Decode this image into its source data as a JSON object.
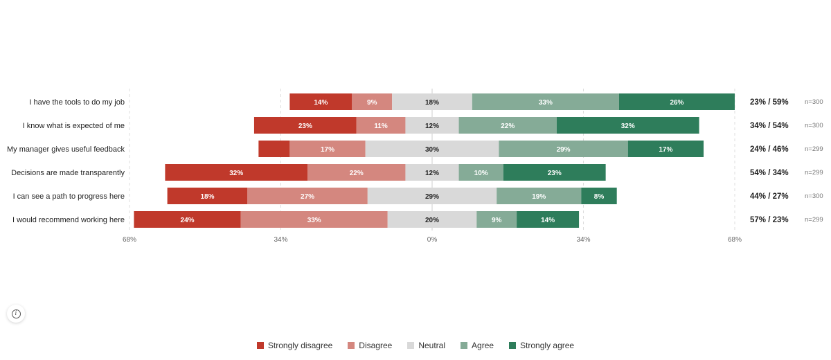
{
  "chart_data": {
    "type": "bar",
    "orientation": "horizontal-diverging",
    "stacked": true,
    "categories": [
      "I have the tools to do my job",
      "I know what is expected of me",
      "My manager gives useful feedback",
      "Decisions are made transparently",
      "I can see a path to progress here",
      "I would recommend working here"
    ],
    "series": [
      {
        "name": "Strongly disagree",
        "color": "#c0392b",
        "values": [
          14,
          23,
          7,
          32,
          18,
          24
        ]
      },
      {
        "name": "Disagree",
        "color": "#d4877f",
        "values": [
          9,
          11,
          17,
          22,
          27,
          33
        ]
      },
      {
        "name": "Neutral",
        "color": "#d9d9d9",
        "values": [
          18,
          12,
          30,
          12,
          29,
          20
        ]
      },
      {
        "name": "Agree",
        "color": "#85ab97",
        "values": [
          33,
          22,
          29,
          10,
          19,
          9
        ]
      },
      {
        "name": "Strongly agree",
        "color": "#2e7d5b",
        "values": [
          26,
          32,
          17,
          23,
          8,
          14
        ]
      }
    ],
    "summaries": [
      "23% / 59%",
      "34% / 54%",
      "24% / 46%",
      "54% / 34%",
      "44% / 27%",
      "57% / 23%"
    ],
    "n_labels": [
      "n=300",
      "n=300",
      "n=299",
      "n=299",
      "n=300",
      "n=299"
    ],
    "xlim": [
      -68,
      68
    ],
    "xticks": [
      -68,
      -34,
      0,
      34,
      68
    ],
    "xtick_labels": [
      "68%",
      "34%",
      "0%",
      "34%",
      "68%"
    ],
    "grid": true,
    "legend_position": "bottom"
  },
  "legend": [
    {
      "label": "Strongly disagree",
      "color": "#c0392b"
    },
    {
      "label": "Disagree",
      "color": "#d4877f"
    },
    {
      "label": "Neutral",
      "color": "#d9d9d9"
    },
    {
      "label": "Agree",
      "color": "#85ab97"
    },
    {
      "label": "Strongly agree",
      "color": "#2e7d5b"
    }
  ],
  "info_icon": "info-icon"
}
